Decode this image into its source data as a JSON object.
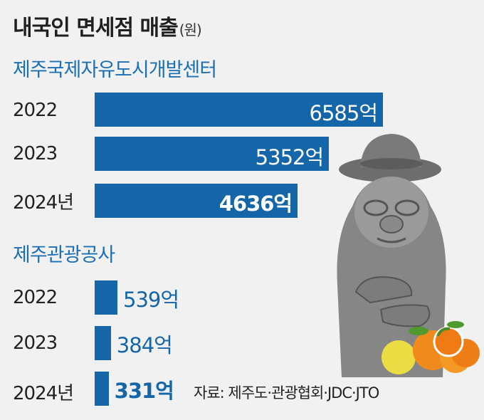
{
  "title": "내국인 면세점 매출",
  "unit": "(원)",
  "source": "자료: 제주도·관광협회·JDC·JTO",
  "colors": {
    "bar": "#1565a9",
    "section": "#1b6fb5",
    "background": "#f1f1f1"
  },
  "chart_data": [
    {
      "type": "bar",
      "orientation": "horizontal",
      "title": "제주국제자유도시개발센터",
      "categories": [
        "2022",
        "2023",
        "2024년"
      ],
      "values": [
        6585,
        5352,
        4636
      ],
      "value_labels": [
        "6585억",
        "5352억",
        "4636억"
      ],
      "unit": "억"
    },
    {
      "type": "bar",
      "orientation": "horizontal",
      "title": "제주관광공사",
      "categories": [
        "2022",
        "2023",
        "2024년"
      ],
      "values": [
        539,
        384,
        331
      ],
      "value_labels": [
        "539억",
        "384억",
        "331억"
      ],
      "unit": "억"
    }
  ]
}
